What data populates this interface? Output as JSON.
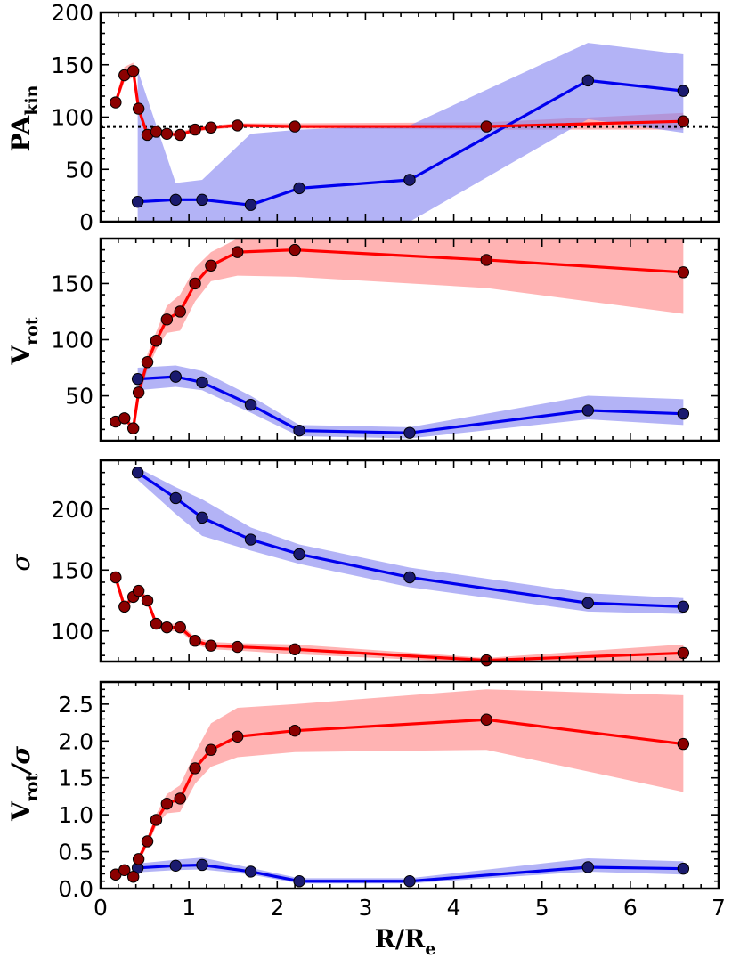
{
  "chart_data": [
    {
      "type": "line",
      "ylabel": "PA_kin",
      "ylabel_main": "PA",
      "ylabel_sub": "kin",
      "ylim": [
        0,
        200
      ],
      "xlim": [
        0,
        7
      ],
      "yticks": [
        0,
        50,
        100,
        150,
        200
      ],
      "reference_line": {
        "y": 91,
        "style": "dotted",
        "color": "#000000"
      },
      "series": [
        {
          "name": "red",
          "color": "#ff0000",
          "band_color": "#ff8080",
          "x": [
            0.17,
            0.27,
            0.37,
            0.43,
            0.53,
            0.63,
            0.75,
            0.9,
            1.07,
            1.25,
            1.55,
            2.2,
            4.37,
            6.6
          ],
          "values": [
            114,
            140,
            144,
            108,
            83,
            86,
            84,
            83,
            88,
            90,
            92,
            91,
            91,
            96
          ],
          "lower": [
            110,
            134,
            138,
            104,
            80,
            83,
            82,
            81,
            86,
            88,
            90,
            89,
            88,
            88
          ],
          "upper": [
            118,
            148,
            152,
            112,
            87,
            89,
            87,
            86,
            90,
            92,
            94,
            94,
            95,
            104
          ]
        },
        {
          "name": "blue",
          "color": "#0000ee",
          "band_color": "#8080f0",
          "x": [
            0.42,
            0.85,
            1.15,
            1.7,
            2.25,
            3.5,
            5.52,
            6.6
          ],
          "values": [
            19,
            21,
            21,
            16,
            32,
            40,
            135,
            125
          ],
          "lower": [
            0,
            0,
            0,
            0,
            0,
            0,
            98,
            85
          ],
          "upper": [
            145,
            37,
            40,
            84,
            88,
            92,
            171,
            160
          ]
        }
      ]
    },
    {
      "type": "line",
      "ylabel": "V_rot",
      "ylabel_main": "V",
      "ylabel_sub": "rot",
      "ylim": [
        10,
        190
      ],
      "xlim": [
        0,
        7
      ],
      "yticks": [
        50,
        100,
        150
      ],
      "series": [
        {
          "name": "red",
          "color": "#ff0000",
          "band_color": "#ff8080",
          "x": [
            0.17,
            0.27,
            0.37,
            0.43,
            0.53,
            0.63,
            0.75,
            0.9,
            1.07,
            1.25,
            1.55,
            2.2,
            4.37,
            6.6
          ],
          "values": [
            27,
            30,
            21,
            53,
            80,
            99,
            118,
            125,
            150,
            166,
            178,
            180,
            171,
            160
          ],
          "lower": [
            24,
            27,
            18,
            47,
            73,
            91,
            106,
            108,
            134,
            152,
            157,
            156,
            146,
            123
          ],
          "upper": [
            30,
            33,
            24,
            59,
            87,
            107,
            130,
            140,
            164,
            178,
            190,
            190,
            189,
            189
          ]
        },
        {
          "name": "blue",
          "color": "#0000ee",
          "band_color": "#8080f0",
          "x": [
            0.42,
            0.85,
            1.15,
            1.7,
            2.25,
            3.5,
            5.52,
            6.6
          ],
          "values": [
            65,
            67,
            62,
            42,
            19,
            17,
            37,
            34
          ],
          "lower": [
            55,
            58,
            55,
            35,
            14,
            12,
            29,
            24
          ],
          "upper": [
            75,
            77,
            72,
            50,
            24,
            22,
            50,
            47
          ]
        }
      ]
    },
    {
      "type": "line",
      "ylabel": "σ",
      "ylim": [
        75,
        240
      ],
      "xlim": [
        0,
        7
      ],
      "yticks": [
        100,
        150,
        200
      ],
      "series": [
        {
          "name": "red",
          "color": "#ff0000",
          "band_color": "#ff8080",
          "x": [
            0.17,
            0.27,
            0.37,
            0.43,
            0.53,
            0.63,
            0.75,
            0.9,
            1.07,
            1.25,
            1.55,
            2.2,
            4.37,
            6.6
          ],
          "values": [
            144,
            120,
            128,
            133,
            125,
            106,
            103,
            103,
            92,
            88,
            87,
            85,
            76,
            82
          ],
          "lower": [
            140,
            117,
            125,
            130,
            122,
            103,
            100,
            100,
            89,
            85,
            84,
            81,
            74,
            76
          ],
          "upper": [
            148,
            123,
            131,
            136,
            128,
            109,
            106,
            106,
            95,
            91,
            90,
            89,
            78,
            89
          ]
        },
        {
          "name": "blue",
          "color": "#0000ee",
          "band_color": "#8080f0",
          "x": [
            0.42,
            0.85,
            1.15,
            1.7,
            2.25,
            3.5,
            5.52,
            6.6
          ],
          "values": [
            230,
            209,
            193,
            175,
            163,
            144,
            123,
            120
          ],
          "lower": [
            224,
            196,
            178,
            166,
            155,
            136,
            116,
            114
          ],
          "upper": [
            234,
            218,
            208,
            185,
            171,
            152,
            131,
            127
          ]
        }
      ]
    },
    {
      "type": "line",
      "ylabel": "V_rot/σ",
      "ylabel_main": "V",
      "ylabel_sub": "rot",
      "ylabel_tail": "/σ",
      "ylim": [
        0,
        2.8
      ],
      "xlim": [
        0,
        7
      ],
      "xlabel": "R/R_e",
      "xlabel_main": "R/R",
      "xlabel_sub": "e",
      "yticks": [
        0.0,
        0.5,
        1.0,
        1.5,
        2.0,
        2.5
      ],
      "ytick_labels": [
        "0.0",
        "0.5",
        "1.0",
        "1.5",
        "2.0",
        "2.5"
      ],
      "xticks": [
        0,
        1,
        2,
        3,
        4,
        5,
        6,
        7
      ],
      "series": [
        {
          "name": "red",
          "color": "#ff0000",
          "band_color": "#ff8080",
          "x": [
            0.17,
            0.27,
            0.37,
            0.43,
            0.53,
            0.63,
            0.75,
            0.9,
            1.07,
            1.25,
            1.55,
            2.2,
            4.37,
            6.6
          ],
          "values": [
            0.19,
            0.25,
            0.16,
            0.4,
            0.64,
            0.93,
            1.15,
            1.22,
            1.63,
            1.88,
            2.06,
            2.14,
            2.29,
            1.96
          ],
          "lower": [
            0.16,
            0.22,
            0.13,
            0.35,
            0.58,
            0.85,
            1.02,
            1.04,
            1.42,
            1.65,
            1.78,
            1.85,
            1.88,
            1.31
          ],
          "upper": [
            0.22,
            0.28,
            0.19,
            0.45,
            0.7,
            1.01,
            1.28,
            1.4,
            1.84,
            2.24,
            2.45,
            2.5,
            2.7,
            2.62
          ]
        },
        {
          "name": "blue",
          "color": "#0000ee",
          "band_color": "#8080f0",
          "x": [
            0.42,
            0.85,
            1.15,
            1.7,
            2.25,
            3.5,
            5.52,
            6.6
          ],
          "values": [
            0.28,
            0.31,
            0.32,
            0.23,
            0.1,
            0.1,
            0.29,
            0.27
          ],
          "lower": [
            0.22,
            0.25,
            0.26,
            0.19,
            0.07,
            0.07,
            0.23,
            0.19
          ],
          "upper": [
            0.34,
            0.39,
            0.42,
            0.28,
            0.14,
            0.14,
            0.41,
            0.37
          ]
        }
      ]
    }
  ]
}
